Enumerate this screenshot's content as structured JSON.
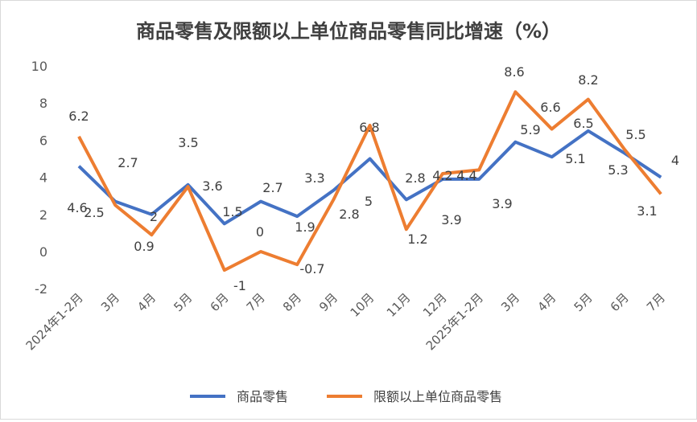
{
  "chart_data": {
    "type": "line",
    "title": "商品零售及限额以上单位商品零售同比增速（%）",
    "categories": [
      "2024年1-2月",
      "3月",
      "4月",
      "5月",
      "6月",
      "7月",
      "8月",
      "9月",
      "10月",
      "11月",
      "12月",
      "2025年1-2月",
      "3月",
      "4月",
      "5月",
      "6月",
      "7月"
    ],
    "series": [
      {
        "name": "商品零售",
        "color": "#4472C4",
        "values": [
          4.6,
          2.7,
          2.0,
          3.6,
          1.5,
          2.7,
          1.9,
          3.3,
          5.0,
          2.8,
          3.9,
          3.9,
          5.9,
          5.1,
          6.5,
          5.3,
          4.0
        ],
        "labels": [
          "4.6",
          "2.7",
          "2",
          "3.6",
          "1.5",
          "2.7",
          "1.9",
          "3.3",
          "5",
          "2.8",
          "3.9",
          "3.9",
          "5.9",
          "5.1",
          "6.5",
          "5.3",
          "4"
        ]
      },
      {
        "name": "限额以上单位商品零售",
        "color": "#ED7D31",
        "values": [
          6.2,
          2.5,
          0.9,
          3.5,
          -1.0,
          0.0,
          -0.7,
          2.8,
          6.8,
          1.2,
          4.2,
          4.4,
          8.6,
          6.6,
          8.2,
          5.5,
          3.1
        ],
        "labels": [
          "6.2",
          "2.5",
          "0.9",
          "3.5",
          "-1",
          "0",
          "-0.7",
          "2.8",
          "6.8",
          "1.2",
          "4.2",
          "4.4",
          "8.6",
          "6.6",
          "8.2",
          "5.5",
          "3.1"
        ]
      }
    ],
    "ylim": [
      -2,
      10
    ],
    "yticks": [
      "-2",
      "0",
      "2",
      "4",
      "6",
      "8",
      "10"
    ],
    "grid": false,
    "legend": "bottom"
  }
}
